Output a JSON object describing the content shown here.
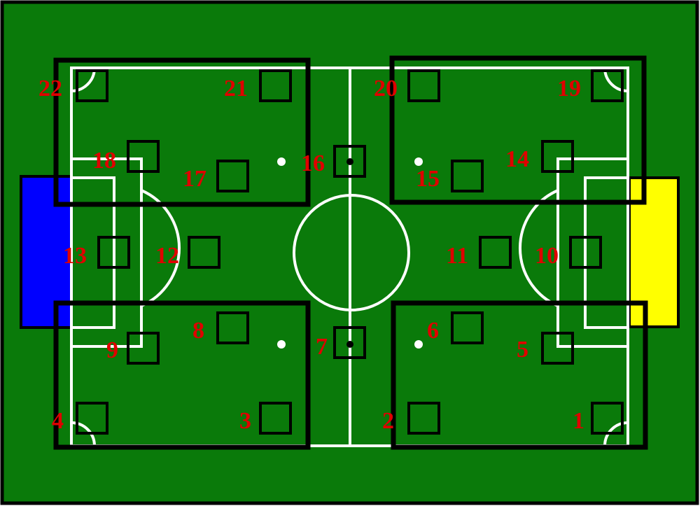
{
  "colors": {
    "grass": "#0a7a0a",
    "lines": "#ffffff",
    "frame": "#000000",
    "goal_left": "#0000ff",
    "goal_right": "#ffff00",
    "label": "#e00000"
  },
  "positions": [
    {
      "id": "1",
      "label": "1"
    },
    {
      "id": "2",
      "label": "2"
    },
    {
      "id": "3",
      "label": "3"
    },
    {
      "id": "4",
      "label": "4"
    },
    {
      "id": "5",
      "label": "5"
    },
    {
      "id": "6",
      "label": "6"
    },
    {
      "id": "7",
      "label": "7"
    },
    {
      "id": "8",
      "label": "8"
    },
    {
      "id": "9",
      "label": "9"
    },
    {
      "id": "10",
      "label": "10"
    },
    {
      "id": "11",
      "label": "11"
    },
    {
      "id": "12",
      "label": "12"
    },
    {
      "id": "13",
      "label": "13"
    },
    {
      "id": "14",
      "label": "14"
    },
    {
      "id": "15",
      "label": "15"
    },
    {
      "id": "16",
      "label": "16"
    },
    {
      "id": "17",
      "label": "17"
    },
    {
      "id": "18",
      "label": "18"
    },
    {
      "id": "19",
      "label": "19"
    },
    {
      "id": "20",
      "label": "20"
    },
    {
      "id": "21",
      "label": "21"
    },
    {
      "id": "22",
      "label": "22"
    }
  ]
}
